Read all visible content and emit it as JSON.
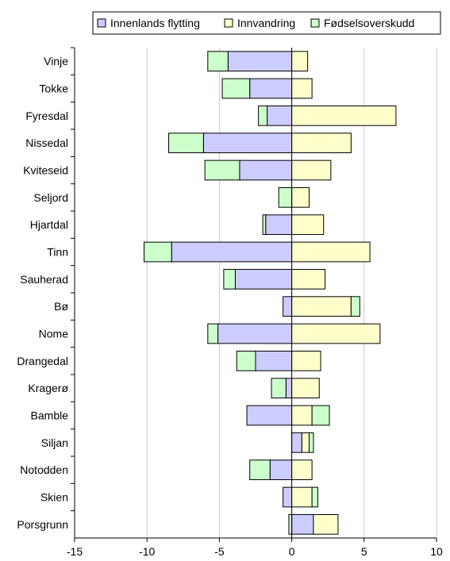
{
  "chart_data": {
    "type": "bar",
    "orientation": "horizontal",
    "stacked": true,
    "title": "",
    "xlabel": "",
    "ylabel": "",
    "xlim": [
      -15,
      10
    ],
    "xticks": [
      "-15",
      "-10",
      "-5",
      "0",
      "5",
      "10"
    ],
    "grid": "vertical",
    "legend_position": "top",
    "categories": [
      "Vinje",
      "Tokke",
      "Fyresdal",
      "Nissedal",
      "Kviteseid",
      "Seljord",
      "Hjartdal",
      "Tinn",
      "Sauherad",
      "Bø",
      "Nome",
      "Drangedal",
      "Kragerø",
      "Bamble",
      "Siljan",
      "Notodden",
      "Skien",
      "Porsgrunn"
    ],
    "series": [
      {
        "name": "Innenlands flytting",
        "color": "#ccccff",
        "values": [
          -4.4,
          -2.9,
          -1.7,
          -6.1,
          -3.6,
          0,
          -1.8,
          -8.3,
          -3.9,
          -0.6,
          -5.1,
          -2.5,
          -0.4,
          -3.1,
          0.7,
          -1.5,
          -0.6,
          1.5
        ]
      },
      {
        "name": "Innvandring",
        "color": "#ffffcc",
        "values": [
          1.1,
          1.4,
          7.2,
          4.1,
          2.7,
          1.2,
          2.2,
          5.4,
          2.3,
          4.1,
          6.1,
          2.0,
          1.9,
          1.4,
          0.5,
          1.4,
          1.4,
          1.7
        ]
      },
      {
        "name": "Fødselsoverskudd",
        "color": "#ccffcc",
        "values": [
          -1.4,
          -1.9,
          -0.6,
          -2.4,
          -2.4,
          -0.9,
          -0.2,
          -1.9,
          -0.8,
          0.6,
          -0.7,
          -1.3,
          -1.0,
          1.2,
          0.3,
          -1.4,
          0.4,
          -0.2
        ]
      }
    ]
  }
}
